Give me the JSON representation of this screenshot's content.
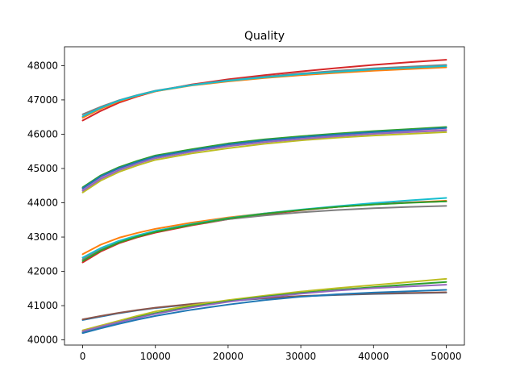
{
  "chart_data": {
    "type": "line",
    "title": "Quality",
    "xlabel": "",
    "ylabel": "",
    "xlim": [
      -2500,
      52500
    ],
    "ylim": [
      39850,
      48550
    ],
    "grid": false,
    "legend": "none",
    "x": [
      0,
      2500,
      5000,
      7500,
      10000,
      15000,
      20000,
      25000,
      30000,
      35000,
      40000,
      45000,
      50000
    ],
    "x_ticks": [
      0,
      10000,
      20000,
      30000,
      40000,
      50000
    ],
    "x_tick_labels": [
      "0",
      "10000",
      "20000",
      "30000",
      "40000",
      "50000"
    ],
    "y_ticks": [
      40000,
      41000,
      42000,
      43000,
      44000,
      45000,
      46000,
      47000,
      48000
    ],
    "y_tick_labels": [
      "40000",
      "41000",
      "42000",
      "43000",
      "44000",
      "45000",
      "46000",
      "47000",
      "48000"
    ],
    "series": [
      {
        "color": "#d62728",
        "values": [
          46400,
          46680,
          46920,
          47100,
          47250,
          47450,
          47600,
          47720,
          47830,
          47930,
          48020,
          48100,
          48170
        ]
      },
      {
        "color": "#7f7f7f",
        "values": [
          46580,
          46800,
          46990,
          47140,
          47270,
          47440,
          47570,
          47680,
          47770,
          47850,
          47920,
          47970,
          48020
        ]
      },
      {
        "color": "#ff7f0e",
        "values": [
          46480,
          46740,
          46960,
          47120,
          47250,
          47420,
          47540,
          47640,
          47720,
          47790,
          47850,
          47900,
          47950
        ]
      },
      {
        "color": "#17becf",
        "values": [
          46520,
          46770,
          46980,
          47130,
          47260,
          47430,
          47560,
          47660,
          47750,
          47820,
          47890,
          47940,
          47990
        ]
      },
      {
        "color": "#2ca02c",
        "values": [
          44450,
          44800,
          45040,
          45220,
          45380,
          45560,
          45730,
          45850,
          45940,
          46020,
          46090,
          46150,
          46210
        ]
      },
      {
        "color": "#bcbd22",
        "values": [
          44300,
          44650,
          44900,
          45090,
          45250,
          45440,
          45590,
          45720,
          45820,
          45900,
          45960,
          46010,
          46060
        ]
      },
      {
        "color": "#e377c2",
        "values": [
          44380,
          44730,
          44980,
          45160,
          45320,
          45510,
          45670,
          45790,
          45880,
          45950,
          46020,
          46080,
          46130
        ]
      },
      {
        "color": "#1f77b4",
        "values": [
          44420,
          44770,
          45010,
          45190,
          45350,
          45530,
          45700,
          45820,
          45910,
          45990,
          46060,
          46120,
          46180
        ]
      },
      {
        "color": "#9467bd",
        "values": [
          44350,
          44700,
          44950,
          45140,
          45300,
          45490,
          45650,
          45770,
          45860,
          45940,
          46010,
          46060,
          46110
        ]
      },
      {
        "color": "#ff7f0e",
        "values": [
          42500,
          42780,
          42980,
          43120,
          43240,
          43420,
          43570,
          43690,
          43790,
          43880,
          43950,
          44010,
          44060
        ]
      },
      {
        "color": "#d62728",
        "values": [
          42260,
          42580,
          42820,
          42990,
          43130,
          43340,
          43520,
          43660,
          43780,
          43880,
          43960,
          44010,
          44040
        ]
      },
      {
        "color": "#7f7f7f",
        "values": [
          42350,
          42640,
          42860,
          43020,
          43160,
          43360,
          43520,
          43630,
          43720,
          43790,
          43840,
          43880,
          43910
        ]
      },
      {
        "color": "#17becf",
        "values": [
          42400,
          42680,
          42890,
          43050,
          43180,
          43380,
          43550,
          43690,
          43800,
          43900,
          43990,
          44070,
          44140
        ]
      },
      {
        "color": "#2ca02c",
        "values": [
          42300,
          42610,
          42840,
          43010,
          43150,
          43360,
          43540,
          43680,
          43790,
          43880,
          43950,
          44000,
          44040
        ]
      },
      {
        "color": "#1f77b4",
        "values": [
          40580,
          40680,
          40780,
          40860,
          40930,
          41040,
          41130,
          41210,
          41270,
          41310,
          41340,
          41360,
          41380
        ]
      },
      {
        "color": "#8c564b",
        "values": [
          40600,
          40700,
          40790,
          40870,
          40940,
          41050,
          41140,
          41220,
          41280,
          41320,
          41350,
          41370,
          41390
        ]
      },
      {
        "color": "#bcbd22",
        "values": [
          40280,
          40420,
          40560,
          40700,
          40830,
          41010,
          41160,
          41290,
          41410,
          41510,
          41600,
          41690,
          41780
        ]
      },
      {
        "color": "#2ca02c",
        "values": [
          40220,
          40380,
          40520,
          40660,
          40780,
          40970,
          41130,
          41260,
          41370,
          41460,
          41540,
          41620,
          41690
        ]
      },
      {
        "color": "#9467bd",
        "values": [
          40250,
          40390,
          40520,
          40640,
          40760,
          40950,
          41110,
          41240,
          41350,
          41440,
          41510,
          41560,
          41610
        ]
      },
      {
        "color": "#1f77b4",
        "values": [
          40200,
          40340,
          40470,
          40590,
          40700,
          40880,
          41030,
          41160,
          41260,
          41330,
          41380,
          41420,
          41460
        ]
      }
    ]
  }
}
